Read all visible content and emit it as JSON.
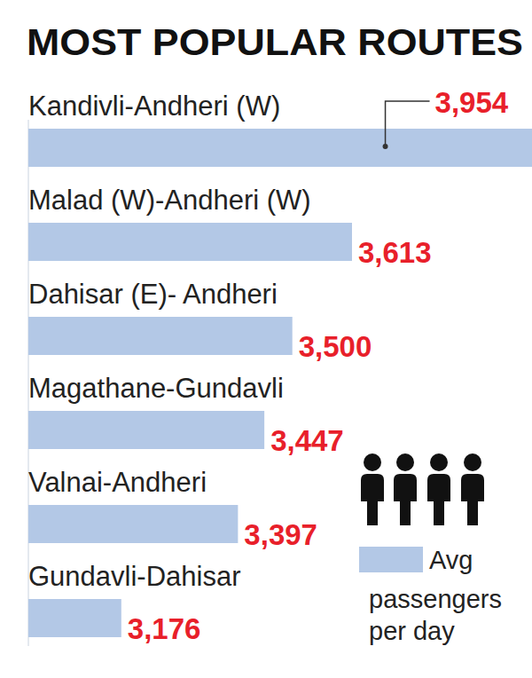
{
  "chart_data": {
    "type": "bar",
    "title": "MOST POPULAR ROUTES",
    "orientation": "horizontal",
    "categories": [
      "Kandivli-Andheri (W)",
      "Malad (W)-Andheri (W)",
      "Dahisar (E)- Andheri",
      "Magathane-Gundavli",
      "Valnai-Andheri",
      "Gundavli-Dahisar"
    ],
    "series": [
      {
        "name": "Avg passengers per day",
        "color": "#b3c8e6",
        "values": [
          3954,
          3613,
          3500,
          3447,
          3397,
          3176
        ],
        "value_labels": [
          "3,954",
          "3,613",
          "3,500",
          "3,447",
          "3,397",
          "3,176"
        ]
      }
    ],
    "xlim": [
      3000,
      3954
    ],
    "xticks": [],
    "tick_labels": false,
    "grid": false,
    "data_labels": true,
    "legend": "bottom-right"
  }
}
